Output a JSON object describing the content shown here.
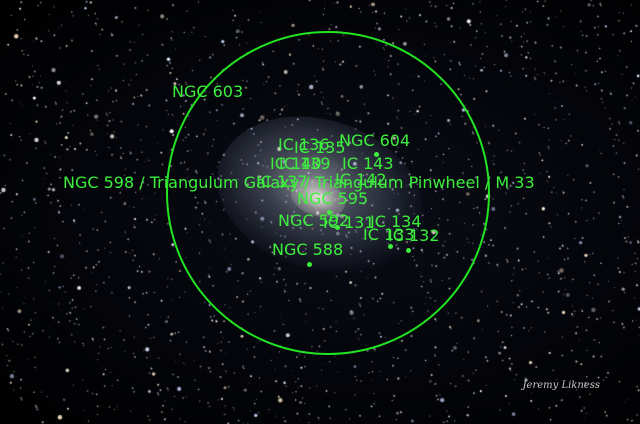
{
  "colors": {
    "annotation": "#3df03d",
    "ring": "#22e422",
    "sky": "#000000"
  },
  "objects": [
    {
      "id": "ngc603",
      "label": "NGC 603"
    },
    {
      "id": "ic136",
      "label": "IC 136"
    },
    {
      "id": "ic135",
      "label": "IC 135"
    },
    {
      "id": "ngc604",
      "label": "NGC 604"
    },
    {
      "id": "ic140",
      "label": "IC 140"
    },
    {
      "id": "ic139",
      "label": "IC 139"
    },
    {
      "id": "ic143",
      "label": "IC 143"
    },
    {
      "id": "m33",
      "label": "NGC 598 / Triangulum Galaxy / Triangulum Pinwheel / M 33"
    },
    {
      "id": "ic137",
      "label": "IC 137"
    },
    {
      "id": "ic142",
      "label": "IC 142"
    },
    {
      "id": "ngc595",
      "label": "NGC 595"
    },
    {
      "id": "ngc592",
      "label": "NGC 592"
    },
    {
      "id": "ic131",
      "label": "IC 131"
    },
    {
      "id": "ic134",
      "label": "IC 134"
    },
    {
      "id": "ic133",
      "label": "IC 133"
    },
    {
      "id": "ic132",
      "label": "IC 132"
    },
    {
      "id": "ngc588",
      "label": "NGC 588"
    }
  ],
  "credit": "Jeremy Likness"
}
